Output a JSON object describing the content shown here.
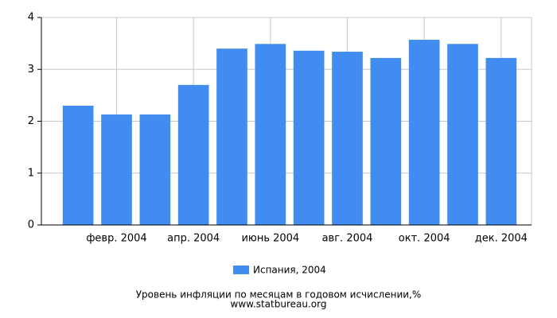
{
  "chart_data": {
    "type": "bar",
    "title": "Уровень инфляции по месяцам в годовом исчислении,%",
    "source": "www.statbureau.org",
    "categories": [
      null,
      "февр. 2004",
      null,
      "апр. 2004",
      null,
      "июнь 2004",
      null,
      "авг. 2004",
      null,
      "окт. 2004",
      null,
      "дек. 2004"
    ],
    "series": [
      {
        "name": "Испания, 2004",
        "color": "#418cf0",
        "values": [
          2.3,
          2.13,
          2.13,
          2.7,
          3.4,
          3.49,
          3.36,
          3.34,
          3.22,
          3.57,
          3.49,
          3.22
        ]
      }
    ],
    "ylim": [
      0,
      4
    ],
    "yticks": [
      0,
      1,
      2,
      3,
      4
    ],
    "grid": true
  }
}
